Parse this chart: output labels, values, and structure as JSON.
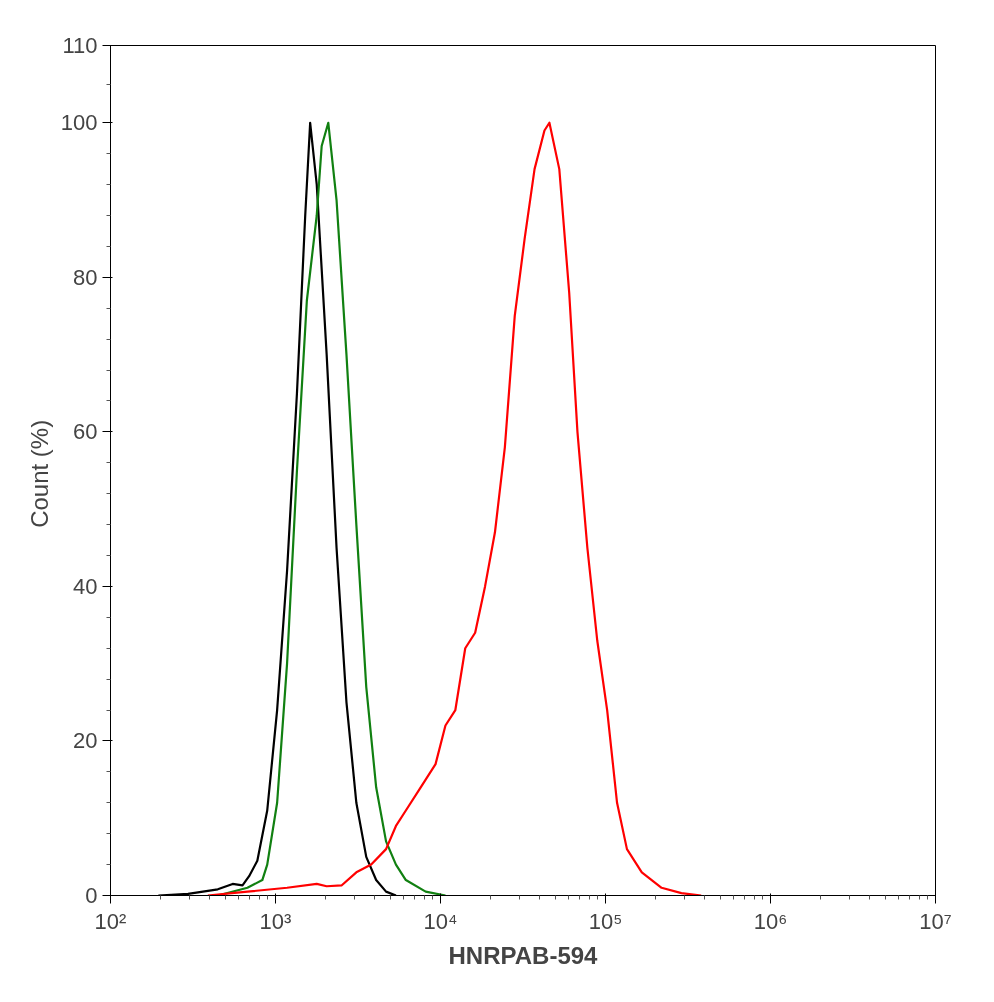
{
  "chart_data": {
    "type": "line",
    "xlabel": "HNRPAB-594",
    "ylabel": "Count  (%)",
    "log": "x",
    "xlim": [
      100,
      10000000
    ],
    "ylim": [
      0,
      110
    ],
    "xticks": [
      {
        "value": 100,
        "label": "10²"
      },
      {
        "value": 1000,
        "label": "10³"
      },
      {
        "value": 10000,
        "label": "10⁴"
      },
      {
        "value": 100000,
        "label": "10⁵"
      },
      {
        "value": 1000000,
        "label": "10⁶"
      },
      {
        "value": 10000000,
        "label": "10⁷"
      }
    ],
    "yticks": [
      0,
      20,
      40,
      60,
      80,
      100,
      110
    ],
    "grid": false,
    "marker": "none",
    "line_style": "solid",
    "series": [
      {
        "color": "#000000",
        "x": [
          195,
          295,
          447,
          550,
          631,
          692,
          776,
          891,
          1023,
          1175,
          1349,
          1514,
          1622,
          1778,
          2042,
          2344,
          2692,
          3090,
          3548,
          4074,
          4677,
          5370
        ],
        "values": [
          0,
          0.2,
          0.8,
          1.5,
          1.3,
          2.5,
          4.5,
          11,
          24,
          42,
          65,
          88,
          100,
          92,
          70,
          45,
          25,
          12,
          5,
          2,
          0.5,
          0
        ]
      },
      {
        "color": "#118011",
        "x": [
          447,
          676,
          832,
          891,
          1023,
          1175,
          1349,
          1549,
          1778,
          1905,
          2089,
          2344,
          2692,
          3090,
          3548,
          4074,
          4677,
          5370,
          6166,
          8128,
          10715
        ],
        "values": [
          0,
          1,
          2,
          4,
          12,
          30,
          55,
          77,
          88,
          97,
          100,
          90,
          70,
          48,
          27,
          14,
          7,
          4,
          2,
          0.5,
          0
        ]
      },
      {
        "color": "#ff0000",
        "x": [
          389,
          676,
          1175,
          1778,
          2042,
          2512,
          3090,
          3802,
          4677,
          5370,
          6166,
          7586,
          9333,
          10715,
          12303,
          14125,
          16218,
          18621,
          21380,
          24547,
          28184,
          32359,
          37154,
          42658,
          45709,
          52481,
          60256,
          67608,
          77625,
          89125,
          102329,
          117490,
          134896,
          165959,
          218776,
          288403,
          380189
        ],
        "values": [
          0,
          0.5,
          1,
          1.5,
          1.2,
          1.3,
          3,
          4,
          6,
          9,
          11,
          14,
          17,
          22,
          24,
          32,
          34,
          40,
          47,
          58,
          75,
          85,
          94,
          99,
          100,
          94,
          78,
          60,
          45,
          33,
          24,
          12,
          6,
          3,
          1,
          0.3,
          0
        ]
      }
    ]
  }
}
